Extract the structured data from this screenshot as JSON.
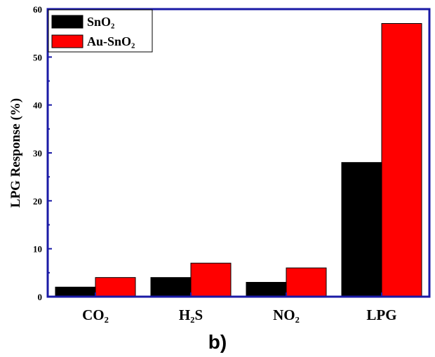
{
  "chart_data": {
    "type": "bar",
    "panel_label": "b)",
    "ylabel": "LPG Response (%)",
    "xlabel": "",
    "ylim": [
      0,
      60
    ],
    "yticks": [
      0,
      10,
      20,
      30,
      40,
      50,
      60
    ],
    "categories": [
      "CO₂",
      "H₂S",
      "NO₂",
      "LPG"
    ],
    "series": [
      {
        "name": "SnO₂",
        "color": "#000000",
        "values": [
          2,
          4,
          3,
          28
        ]
      },
      {
        "name": "Au-SnO₂",
        "color": "#ff0000",
        "values": [
          4,
          7,
          6,
          57
        ]
      }
    ],
    "legend_position": "top-left",
    "grid": false
  }
}
